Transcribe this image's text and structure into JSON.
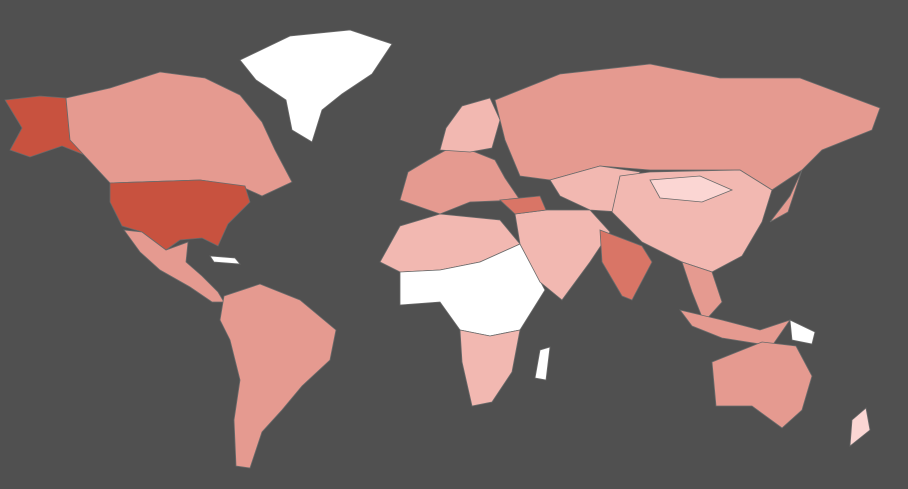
{
  "map": {
    "type": "choropleth",
    "background_color": "#505050",
    "border_color": "#6a6a6a",
    "scale_colors": [
      "#ffffff",
      "#fbd6d3",
      "#f2b8b1",
      "#e59a90",
      "#d97566",
      "#c8523f"
    ],
    "regions": [
      {
        "name": "alaska",
        "level": 5
      },
      {
        "name": "canada",
        "level": 3
      },
      {
        "name": "united-states",
        "level": 5
      },
      {
        "name": "mexico-central-america",
        "level": 3
      },
      {
        "name": "south-america",
        "level": 3
      },
      {
        "name": "greenland",
        "level": 0
      },
      {
        "name": "europe",
        "level": 3
      },
      {
        "name": "scandinavia",
        "level": 2
      },
      {
        "name": "north-africa",
        "level": 2
      },
      {
        "name": "sahel-central-africa",
        "level": 0
      },
      {
        "name": "southern-africa",
        "level": 2
      },
      {
        "name": "russia",
        "level": 3
      },
      {
        "name": "middle-east",
        "level": 2
      },
      {
        "name": "central-asia",
        "level": 2
      },
      {
        "name": "china",
        "level": 2
      },
      {
        "name": "mongolia",
        "level": 1
      },
      {
        "name": "india",
        "level": 4
      },
      {
        "name": "southeast-asia",
        "level": 3
      },
      {
        "name": "japan",
        "level": 3
      },
      {
        "name": "indonesia",
        "level": 3
      },
      {
        "name": "papua-new-guinea",
        "level": 0
      },
      {
        "name": "australia",
        "level": 3
      },
      {
        "name": "new-zealand",
        "level": 1
      },
      {
        "name": "madagascar",
        "level": 0
      },
      {
        "name": "turkey",
        "level": 4
      },
      {
        "name": "cuba",
        "level": 0
      }
    ]
  }
}
